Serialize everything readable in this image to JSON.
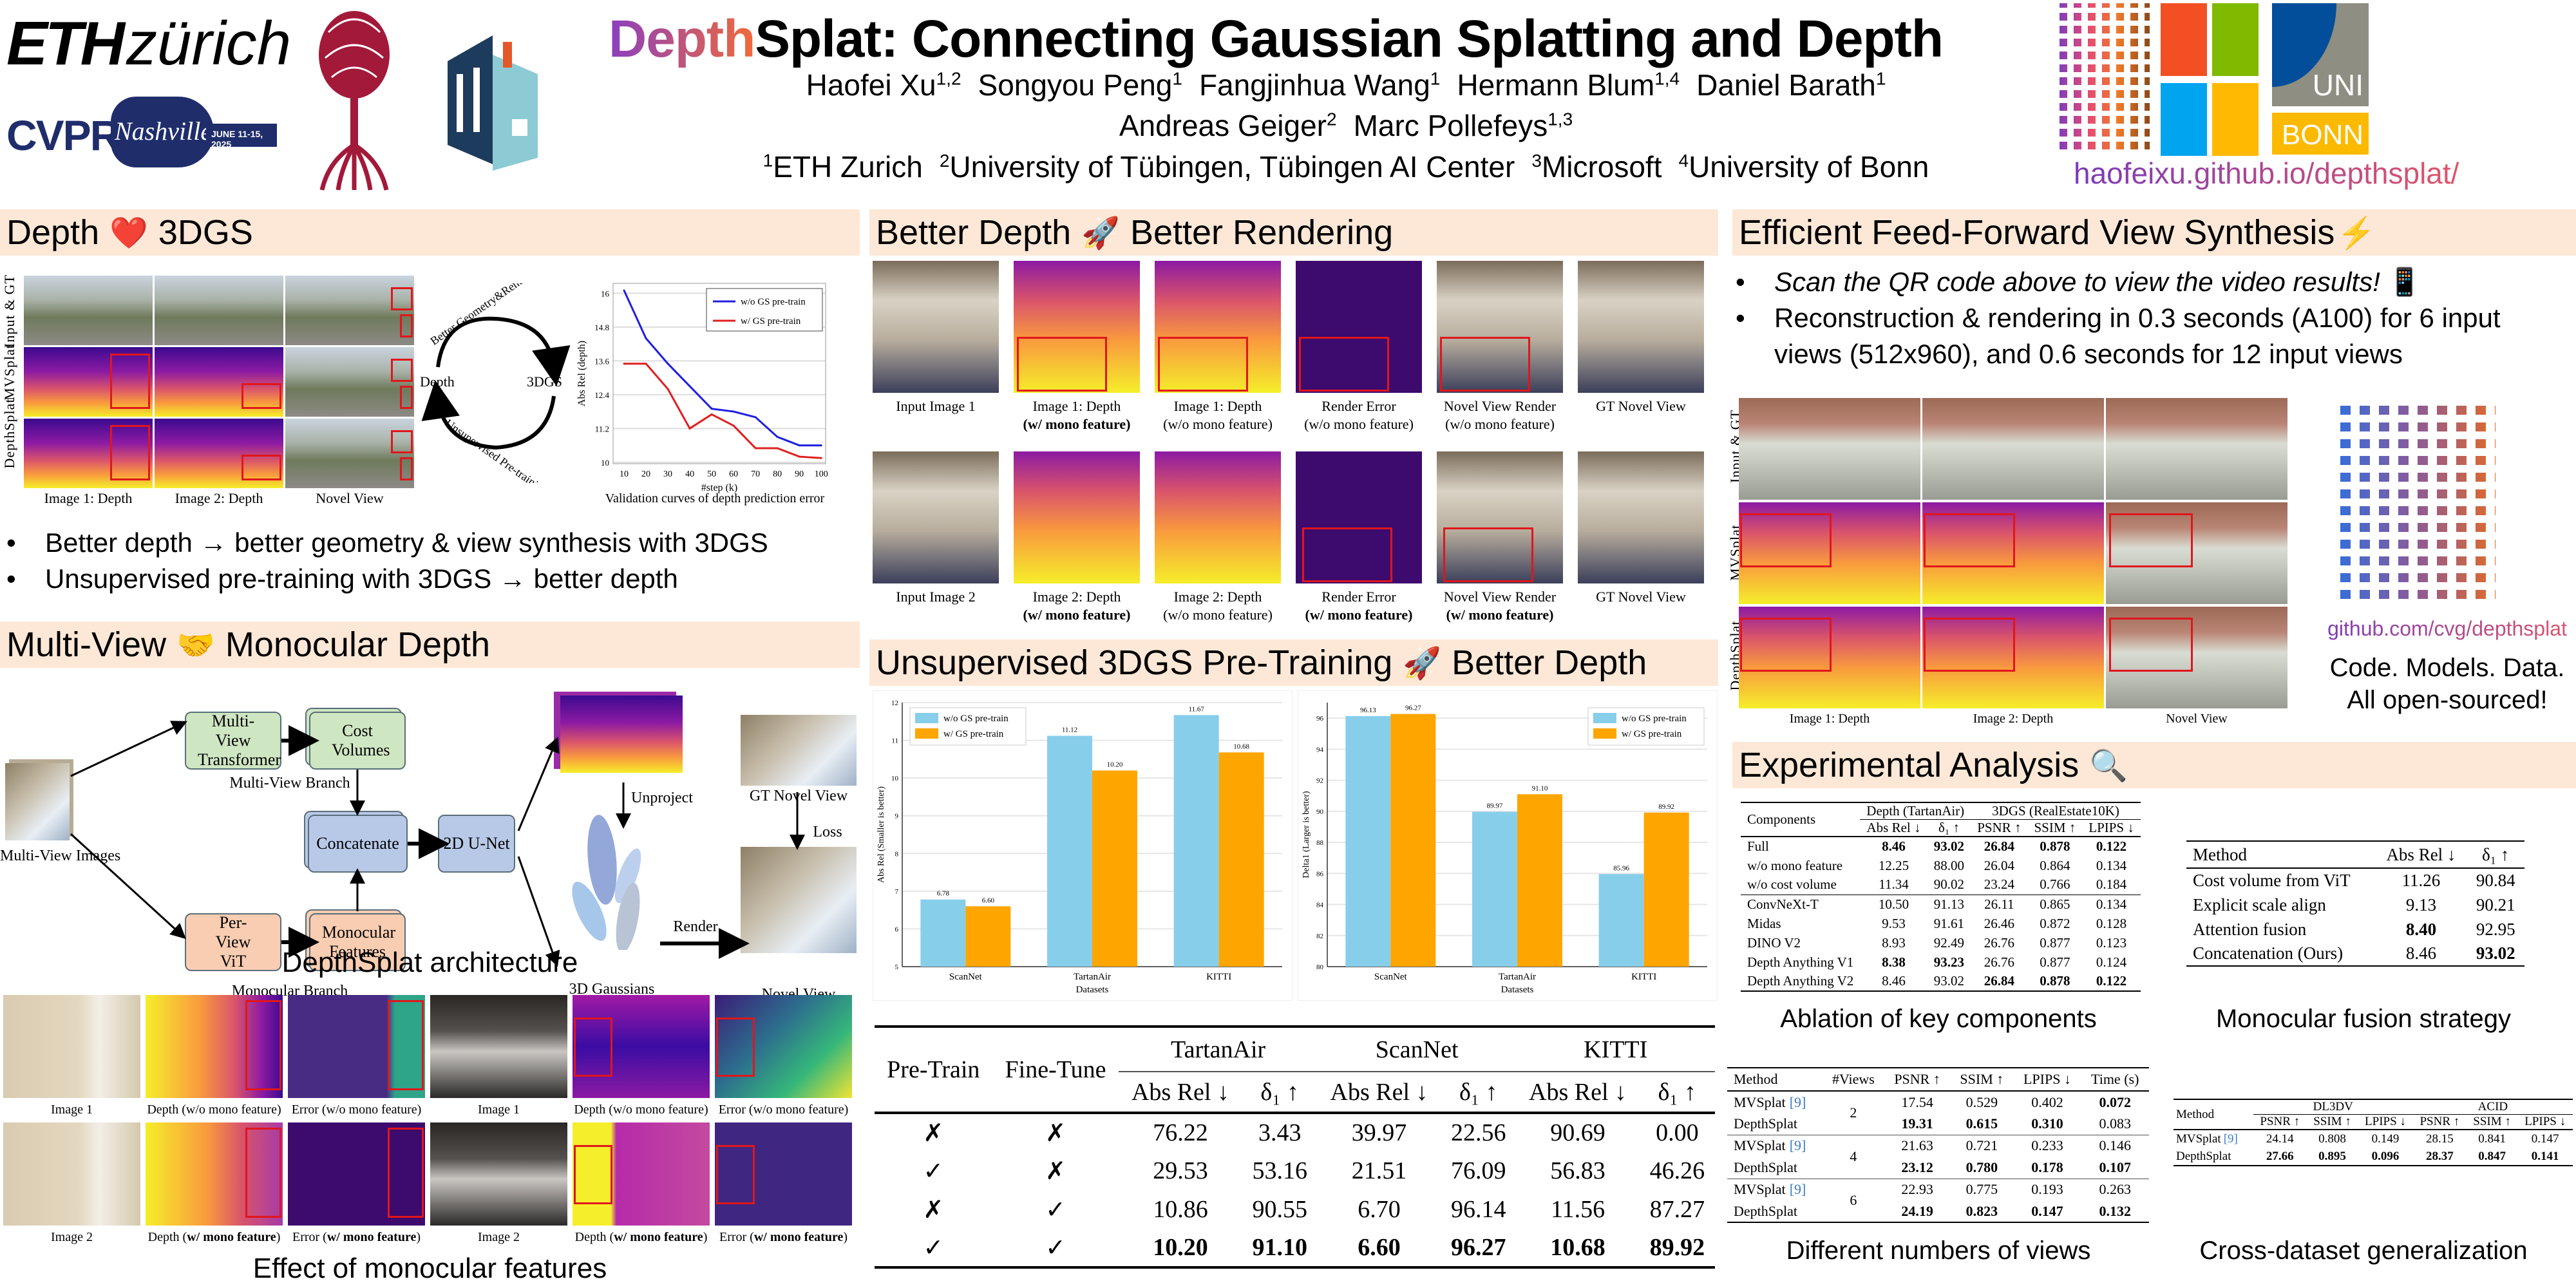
{
  "header": {
    "logos": {
      "eth_bold": "ETH",
      "eth_light": "zürich",
      "cvpr": "CVPR",
      "cvpr_city": "Nashville",
      "cvpr_dates": "JUNE 11-15, 2025",
      "tuebingen_logo": "tree-logo",
      "tu_logo": "TU",
      "uni": "UNI",
      "bonn": "BONN"
    },
    "title_colored": "Depth",
    "title_rest": "Splat: Connecting Gaussian Splatting and Depth",
    "authors_line1": [
      {
        "name": "Haofei Xu",
        "sup": "1,2"
      },
      {
        "name": "Songyou Peng",
        "sup": "1"
      },
      {
        "name": "Fangjinhua Wang",
        "sup": "1"
      },
      {
        "name": "Hermann Blum",
        "sup": "1,4"
      },
      {
        "name": "Daniel Barath",
        "sup": "1"
      }
    ],
    "authors_line2": [
      {
        "name": "Andreas Geiger",
        "sup": "2"
      },
      {
        "name": "Marc Pollefeys",
        "sup": "1,3"
      }
    ],
    "affiliations": [
      {
        "sup": "1",
        "name": "ETH Zurich"
      },
      {
        "sup": "2",
        "name": "University of Tübingen, Tübingen AI Center"
      },
      {
        "sup": "3",
        "name": "Microsoft"
      },
      {
        "sup": "4",
        "name": "University of Bonn"
      }
    ],
    "project_url": "haofeixu.github.io/depthsplat/",
    "colors": {
      "title_gradient_start": "#8a3fc0",
      "title_gradient_end": "#f06a3a",
      "section_bg": "#fde8d7"
    }
  },
  "sections": {
    "depth_3dgs": {
      "title_left": "Depth",
      "emoji": "❤️",
      "title_right": "3DGS",
      "row_labels": [
        "Input & GT",
        "MVSplat",
        "DepthSplat"
      ],
      "col_labels": [
        "Image 1: Depth",
        "Image 2: Depth",
        "Novel View"
      ],
      "cycle": {
        "left": "Depth",
        "right": "3DGS",
        "top": "Better Geometry&Rendering",
        "bottom": "Unsupervised Pre-training"
      },
      "chart_caption": "Validation curves of depth prediction error",
      "bullets": [
        "Better depth → better geometry & view synthesis with 3DGS",
        "Unsupervised pre-training with 3DGS → better depth"
      ]
    },
    "multiview_mono": {
      "title_left": "Multi-View",
      "emoji": "🤝",
      "title_right": "Monocular Depth",
      "diagram": {
        "input_label": "Multi-View Images",
        "mv_transformer": "Multi-View Transformer",
        "cost_volumes": "Cost Volumes",
        "mv_branch": "Multi-View Branch",
        "per_view_vit": "Per-View ViT",
        "mono_features": "Monocular Features",
        "mono_branch": "Monocular Branch",
        "concatenate": "Concatenate",
        "unet": "2D U-Net",
        "unproject": "Unproject",
        "gaussians": "3D Gaussians",
        "render": "Render",
        "gt_novel": "GT Novel View",
        "loss": "Loss",
        "novel": "Novel View"
      },
      "caption": "DepthSplat architecture",
      "mono_effect": {
        "row1": [
          "Image 1",
          "Depth (w/o mono feature)",
          "Error (w/o mono feature)",
          "Image 1",
          "Depth (w/o mono feature)",
          "Error (w/o mono feature)"
        ],
        "row2_prefix": [
          "Image 2",
          "Depth (",
          "Error (",
          "Image 2",
          "Depth (",
          "Error ("
        ],
        "row2_bold": [
          "",
          "w/ mono feature",
          "w/ mono feature",
          "",
          "w/ mono feature",
          "w/ mono feature"
        ],
        "caption": "Effect of monocular features"
      }
    },
    "better_rendering": {
      "title_left": "Better Depth",
      "emoji": "🚀",
      "title_right": "Better Rendering",
      "row1": [
        {
          "l1": "Input Image 1",
          "l2": ""
        },
        {
          "l1": "Image 1: Depth",
          "l2": "(w/ mono feature)",
          "bold": true
        },
        {
          "l1": "Image 1: Depth",
          "l2": "(w/o mono feature)"
        },
        {
          "l1": "Render Error",
          "l2": "(w/o mono feature)"
        },
        {
          "l1": "Novel View Render",
          "l2": "(w/o mono feature)"
        },
        {
          "l1": "GT Novel View",
          "l2": ""
        }
      ],
      "row2": [
        {
          "l1": "Input Image 2",
          "l2": ""
        },
        {
          "l1": "Image 2: Depth",
          "l2": "(w/ mono feature)",
          "bold": true
        },
        {
          "l1": "Image 2: Depth",
          "l2": "(w/o mono feature)"
        },
        {
          "l1": "Render Error",
          "l2": "(w/ mono feature)",
          "bold": true
        },
        {
          "l1": "Novel View Render",
          "l2": "(w/ mono feature)",
          "bold": true
        },
        {
          "l1": "GT Novel View",
          "l2": ""
        }
      ]
    },
    "pretrain": {
      "title_left": "Unsupervised 3DGS Pre-Training",
      "emoji": "🚀",
      "title_right": "Better Depth",
      "table": {
        "col_pretrain": "Pre-Train",
        "col_finetune": "Fine-Tune",
        "datasets": [
          "TartanAir",
          "ScanNet",
          "KITTI"
        ],
        "metrics": [
          "Abs Rel ↓",
          "δ₁ ↑"
        ],
        "rows": [
          {
            "pt": "✗",
            "ft": "✗",
            "vals": [
              "76.22",
              "3.43",
              "39.97",
              "22.56",
              "90.69",
              "0.00"
            ],
            "bold": false
          },
          {
            "pt": "✓",
            "ft": "✗",
            "vals": [
              "29.53",
              "53.16",
              "21.51",
              "76.09",
              "56.83",
              "46.26"
            ],
            "bold": false
          },
          {
            "pt": "✗",
            "ft": "✓",
            "vals": [
              "10.86",
              "90.55",
              "6.70",
              "96.14",
              "11.56",
              "87.27"
            ],
            "bold": false
          },
          {
            "pt": "✓",
            "ft": "✓",
            "vals": [
              "10.20",
              "91.10",
              "6.60",
              "96.27",
              "10.68",
              "89.92"
            ],
            "bold": true
          }
        ]
      }
    },
    "efficient": {
      "title": "Efficient Feed-Forward View Synthesis",
      "emoji": "⚡",
      "bullet_italic": "Scan the QR code above to view the video results!",
      "bullet_emoji": "📱",
      "bullet2": "Reconstruction & rendering in 0.3 seconds (A100) for 6 input views (512x960), and 0.6 seconds for 12 input views",
      "row_labels": [
        "Input & GT",
        "MVSplat",
        "DepthSplat"
      ],
      "col_labels": [
        "Image 1: Depth",
        "Image 2: Depth",
        "Novel View"
      ],
      "github": "github.com/cvg/depthsplat",
      "open1": "Code. Models. Data.",
      "open2": "All open-sourced!"
    },
    "experimental": {
      "title": "Experimental Analysis",
      "emoji": "🔍",
      "ablation": {
        "caption": "Ablation of key components",
        "col_components": "Components",
        "group1": "Depth (TartanAir)",
        "group2": "3DGS (RealEstate10K)",
        "metrics": [
          "Abs Rel ↓",
          "δ₁ ↑",
          "PSNR ↑",
          "SSIM ↑",
          "LPIPS ↓"
        ],
        "rows_a": [
          {
            "name": "Full",
            "vals": [
              "8.46",
              "93.02",
              "26.84",
              "0.878",
              "0.122"
            ],
            "bold": [
              1,
              1,
              1,
              1,
              1
            ]
          },
          {
            "name": "w/o mono feature",
            "vals": [
              "12.25",
              "88.00",
              "26.04",
              "0.864",
              "0.134"
            ],
            "bold": [
              0,
              0,
              0,
              0,
              0
            ]
          },
          {
            "name": "w/o cost volume",
            "vals": [
              "11.34",
              "90.02",
              "23.24",
              "0.766",
              "0.184"
            ],
            "bold": [
              0,
              0,
              0,
              0,
              0
            ]
          }
        ],
        "rows_b": [
          {
            "name": "ConvNeXt-T",
            "vals": [
              "10.50",
              "91.13",
              "26.11",
              "0.865",
              "0.134"
            ],
            "bold": [
              0,
              0,
              0,
              0,
              0
            ]
          },
          {
            "name": "Midas",
            "vals": [
              "9.53",
              "91.61",
              "26.46",
              "0.872",
              "0.128"
            ],
            "bold": [
              0,
              0,
              0,
              0,
              0
            ]
          },
          {
            "name": "DINO V2",
            "vals": [
              "8.93",
              "92.49",
              "26.76",
              "0.877",
              "0.123"
            ],
            "bold": [
              0,
              0,
              0,
              0,
              0
            ]
          },
          {
            "name": "Depth Anything V1",
            "vals": [
              "8.38",
              "93.23",
              "26.76",
              "0.877",
              "0.124"
            ],
            "bold": [
              1,
              1,
              0,
              0,
              0
            ]
          },
          {
            "name": "Depth Anything V2",
            "vals": [
              "8.46",
              "93.02",
              "26.84",
              "0.878",
              "0.122"
            ],
            "bold": [
              0,
              0,
              1,
              1,
              1
            ]
          }
        ]
      },
      "fusion": {
        "caption": "Monocular fusion strategy",
        "cols": [
          "Method",
          "Abs Rel ↓",
          "δ₁ ↑"
        ],
        "rows": [
          {
            "name": "Cost volume from ViT",
            "vals": [
              "11.26",
              "90.84"
            ],
            "bold": [
              0,
              0
            ]
          },
          {
            "name": "Explicit scale align",
            "vals": [
              "9.13",
              "90.21"
            ],
            "bold": [
              0,
              0
            ]
          },
          {
            "name": "Attention fusion",
            "vals": [
              "8.40",
              "92.95"
            ],
            "bold": [
              1,
              0
            ]
          },
          {
            "name": "Concatenation (Ours)",
            "vals": [
              "8.46",
              "93.02"
            ],
            "bold": [
              0,
              1
            ]
          }
        ]
      },
      "views": {
        "caption": "Different numbers of views",
        "cols": [
          "Method",
          "#Views",
          "PSNR ↑",
          "SSIM ↑",
          "LPIPS ↓",
          "Time (s)"
        ],
        "cite": "[9]",
        "groups": [
          {
            "views": "2",
            "mv": [
              "17.54",
              "0.529",
              "0.402",
              "0.072"
            ],
            "mv_bold": [
              0,
              0,
              0,
              1
            ],
            "ds": [
              "19.31",
              "0.615",
              "0.310",
              "0.083"
            ],
            "ds_bold": [
              1,
              1,
              1,
              0
            ]
          },
          {
            "views": "4",
            "mv": [
              "21.63",
              "0.721",
              "0.233",
              "0.146"
            ],
            "mv_bold": [
              0,
              0,
              0,
              0
            ],
            "ds": [
              "23.12",
              "0.780",
              "0.178",
              "0.107"
            ],
            "ds_bold": [
              1,
              1,
              1,
              1
            ]
          },
          {
            "views": "6",
            "mv": [
              "22.93",
              "0.775",
              "0.193",
              "0.263"
            ],
            "mv_bold": [
              0,
              0,
              0,
              0
            ],
            "ds": [
              "24.19",
              "0.823",
              "0.147",
              "0.132"
            ],
            "ds_bold": [
              1,
              1,
              1,
              1
            ]
          }
        ],
        "mv_name": "MVSplat",
        "ds_name": "DepthSplat"
      },
      "cross": {
        "caption": "Cross-dataset generalization",
        "col_method": "Method",
        "groups": [
          "DL3DV",
          "ACID"
        ],
        "metrics": [
          "PSNR ↑",
          "SSIM ↑",
          "LPIPS ↓",
          "PSNR ↑",
          "SSIM ↑",
          "LPIPS ↓"
        ],
        "rows": [
          {
            "name": "MVSplat",
            "cite": "[9]",
            "vals": [
              "24.14",
              "0.808",
              "0.149",
              "28.15",
              "0.841",
              "0.147"
            ],
            "bold": false
          },
          {
            "name": "DepthSplat",
            "cite": "",
            "vals": [
              "27.66",
              "0.895",
              "0.096",
              "28.37",
              "0.847",
              "0.141"
            ],
            "bold": true
          }
        ]
      }
    }
  },
  "chart_data": [
    {
      "type": "line",
      "title": "",
      "xlabel": "#step (k)",
      "ylabel": "Abs Rel (depth)",
      "x": [
        10,
        20,
        30,
        40,
        50,
        60,
        70,
        80,
        90,
        100
      ],
      "xticks": [
        10,
        20,
        30,
        40,
        50,
        60,
        70,
        80,
        90,
        100
      ],
      "yticks": [
        10.0,
        11.2,
        12.4,
        13.6,
        14.8,
        16.0
      ],
      "ylim": [
        9.95,
        16.35
      ],
      "grid": true,
      "legend": "top-right",
      "series": [
        {
          "name": "w/o GS pre-train",
          "color": "#1f1fe0",
          "values": [
            16.1,
            14.4,
            13.5,
            12.7,
            11.9,
            11.8,
            11.6,
            10.9,
            10.6,
            10.6
          ]
        },
        {
          "name": "w/ GS pre-train",
          "color": "#e01f1f",
          "values": [
            13.5,
            13.5,
            12.6,
            11.2,
            11.7,
            11.3,
            10.5,
            10.5,
            10.2,
            10.15
          ]
        }
      ]
    },
    {
      "type": "bar",
      "title": "",
      "xlabel": "Datasets",
      "ylabel": "Abs Rel (Smaller is better)",
      "categories": [
        "ScanNet",
        "TartanAir",
        "KITTI"
      ],
      "yticks": [
        5,
        6,
        7,
        8,
        9,
        10,
        11,
        12
      ],
      "ylim": [
        5,
        12
      ],
      "grid": true,
      "legend": "top-left",
      "series": [
        {
          "name": "w/o GS pre-train",
          "color": "#87ceeb",
          "values": [
            6.78,
            11.12,
            11.67
          ],
          "labels": [
            "6.78",
            "11.12",
            "11.67"
          ]
        },
        {
          "name": "w/ GS pre-train",
          "color": "#ffa500",
          "values": [
            6.6,
            10.2,
            10.68
          ],
          "labels": [
            "6.60",
            "10.20",
            "10.68"
          ]
        }
      ]
    },
    {
      "type": "bar",
      "title": "",
      "xlabel": "Datasets",
      "ylabel": "Delta1 (Larger is better)",
      "categories": [
        "ScanNet",
        "TartanAir",
        "KITTI"
      ],
      "yticks": [
        80,
        82,
        84,
        86,
        88,
        90,
        92,
        94,
        96
      ],
      "ylim": [
        80,
        97
      ],
      "grid": true,
      "legend": "top-right",
      "series": [
        {
          "name": "w/o GS pre-train",
          "color": "#87ceeb",
          "values": [
            96.13,
            89.97,
            85.96
          ],
          "labels": [
            "96.13",
            "89.97",
            "85.96"
          ]
        },
        {
          "name": "w/ GS pre-train",
          "color": "#ffa500",
          "values": [
            96.27,
            91.1,
            89.92
          ],
          "labels": [
            "96.27",
            "91.10",
            "89.92"
          ]
        }
      ]
    }
  ]
}
